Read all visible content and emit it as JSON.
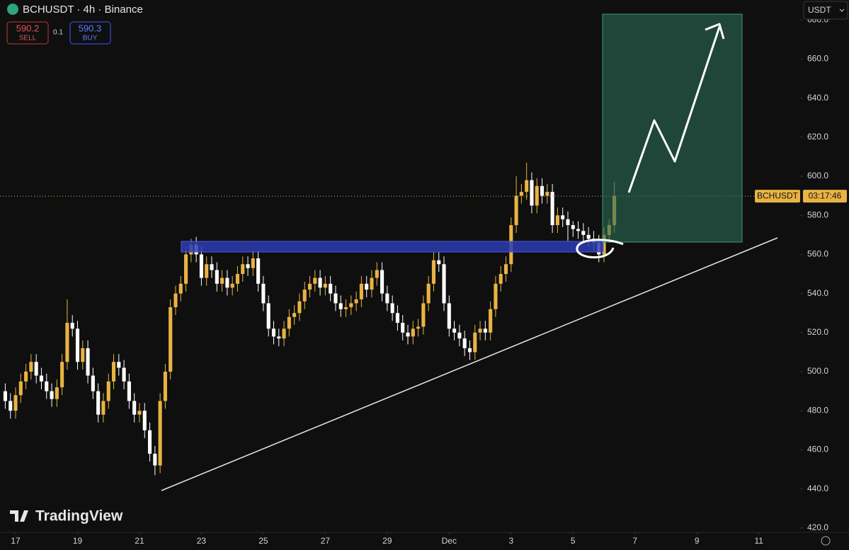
{
  "chart_data": {
    "type": "candlestick",
    "title": "BCHUSDT · 4h · Binance",
    "sell": {
      "price": 590.2,
      "label": "SELL"
    },
    "spread": 0.1,
    "buy": {
      "price": 590.3,
      "label": "BUY"
    },
    "currency": "USDT",
    "brand": "TradingView",
    "price_label": {
      "symbol": "BCHUSDT",
      "countdown": "03:17:46",
      "value": 589.8
    },
    "up_color": "#e9b343",
    "down_color": "#ffffff",
    "xlim": [
      -3.02,
      152
    ],
    "ylim": [
      417.8,
      690.2
    ],
    "xticks": [
      {
        "value": 0,
        "label": "17"
      },
      {
        "value": 12,
        "label": "19"
      },
      {
        "value": 24,
        "label": "21"
      },
      {
        "value": 36,
        "label": "23"
      },
      {
        "value": 48,
        "label": "25"
      },
      {
        "value": 60,
        "label": "27"
      },
      {
        "value": 72,
        "label": "29"
      },
      {
        "value": 84,
        "label": "Dec"
      },
      {
        "value": 96,
        "label": "3"
      },
      {
        "value": 108,
        "label": "5"
      },
      {
        "value": 120,
        "label": "7"
      },
      {
        "value": 132,
        "label": "9"
      },
      {
        "value": 144,
        "label": "11"
      }
    ],
    "yticks": [
      {
        "value": 420,
        "label": "420.0"
      },
      {
        "value": 440,
        "label": "440.0"
      },
      {
        "value": 460,
        "label": "460.0"
      },
      {
        "value": 480,
        "label": "480.0"
      },
      {
        "value": 500,
        "label": "500.0"
      },
      {
        "value": 520,
        "label": "520.0"
      },
      {
        "value": 540,
        "label": "540.0"
      },
      {
        "value": 560,
        "label": "560.0"
      },
      {
        "value": 580,
        "label": "580.0"
      },
      {
        "value": 600,
        "label": "600.0"
      },
      {
        "value": 620,
        "label": "620.0"
      },
      {
        "value": 640,
        "label": "640.0"
      },
      {
        "value": 660,
        "label": "660.0"
      },
      {
        "value": 680,
        "label": "680.0"
      }
    ],
    "x": [
      -2,
      -1,
      0,
      1,
      2,
      3,
      4,
      5,
      6,
      7,
      8,
      9,
      10,
      11,
      12,
      13,
      14,
      15,
      16,
      17,
      18,
      19,
      20,
      21,
      22,
      23,
      24,
      25,
      26,
      27,
      28,
      29,
      30,
      31,
      32,
      33,
      34,
      35,
      36,
      37,
      38,
      39,
      40,
      41,
      42,
      43,
      44,
      45,
      46,
      47,
      48,
      49,
      50,
      51,
      52,
      53,
      54,
      55,
      56,
      57,
      58,
      59,
      60,
      61,
      62,
      63,
      64,
      65,
      66,
      67,
      68,
      69,
      70,
      71,
      72,
      73,
      74,
      75,
      76,
      77,
      78,
      79,
      80,
      81,
      82,
      83,
      84,
      85,
      86,
      87,
      88,
      89,
      90,
      91,
      92,
      93,
      94,
      95,
      96,
      97,
      98,
      99,
      100,
      101,
      102,
      103,
      104,
      105,
      106,
      107,
      108,
      109,
      110,
      111,
      112,
      113,
      114,
      115,
      116
    ],
    "open": [
      490,
      485,
      480,
      488,
      495,
      500,
      505,
      498,
      495,
      490,
      486,
      492,
      505,
      525,
      522,
      505,
      512,
      498,
      490,
      478,
      485,
      495,
      505,
      502,
      495,
      485,
      478,
      480,
      470,
      458,
      452,
      485,
      500,
      533,
      540,
      545,
      560,
      565,
      560,
      548,
      555,
      552,
      545,
      548,
      543,
      545,
      550,
      555,
      553,
      558,
      545,
      535,
      522,
      518,
      517,
      522,
      528,
      530,
      536,
      542,
      545,
      548,
      543,
      545,
      540,
      535,
      532,
      533,
      535,
      537,
      545,
      542,
      548,
      552,
      540,
      535,
      530,
      525,
      520,
      518,
      522,
      523,
      535,
      545,
      557,
      555,
      535,
      522,
      520,
      517,
      512,
      510,
      520,
      522,
      520,
      532,
      545,
      550,
      555,
      575,
      590,
      592,
      598,
      585,
      595,
      590,
      592,
      575,
      580,
      578,
      575,
      573,
      572,
      570,
      568,
      566,
      560,
      570,
      575
    ],
    "high": [
      494,
      489,
      492,
      499,
      504,
      509,
      509,
      502,
      499,
      494,
      496,
      509,
      537,
      529,
      526,
      516,
      516,
      502,
      494,
      489,
      499,
      509,
      509,
      506,
      499,
      489,
      484,
      484,
      474,
      462,
      489,
      504,
      537,
      544,
      549,
      564,
      568,
      569,
      564,
      559,
      559,
      556,
      552,
      552,
      549,
      554,
      559,
      559,
      562,
      562,
      549,
      539,
      526,
      522,
      526,
      532,
      534,
      540,
      546,
      549,
      552,
      552,
      549,
      549,
      544,
      539,
      537,
      539,
      541,
      549,
      549,
      552,
      556,
      556,
      544,
      539,
      534,
      529,
      524,
      526,
      527,
      539,
      549,
      561,
      561,
      559,
      539,
      526,
      524,
      521,
      516,
      524,
      526,
      526,
      536,
      549,
      554,
      559,
      579,
      600,
      596,
      607,
      602,
      599,
      599,
      596,
      596,
      584,
      584,
      582,
      577,
      577,
      576,
      574,
      572,
      570,
      574,
      578,
      597
    ],
    "low": [
      481,
      476,
      476,
      484,
      491,
      496,
      494,
      491,
      486,
      482,
      482,
      488,
      501,
      518,
      501,
      501,
      494,
      486,
      474,
      474,
      481,
      491,
      498,
      491,
      481,
      474,
      474,
      466,
      454,
      447,
      448,
      481,
      496,
      529,
      536,
      541,
      556,
      556,
      544,
      544,
      548,
      541,
      541,
      539,
      539,
      541,
      546,
      549,
      549,
      541,
      531,
      518,
      514,
      513,
      513,
      518,
      524,
      526,
      532,
      538,
      541,
      539,
      539,
      536,
      531,
      528,
      528,
      529,
      531,
      533,
      538,
      538,
      544,
      536,
      531,
      526,
      521,
      516,
      514,
      514,
      518,
      519,
      531,
      541,
      551,
      531,
      518,
      516,
      513,
      508,
      506,
      506,
      516,
      516,
      516,
      528,
      541,
      546,
      551,
      571,
      586,
      588,
      581,
      581,
      586,
      586,
      571,
      571,
      574,
      567,
      569,
      568,
      566,
      564,
      562,
      556,
      556,
      566,
      571
    ],
    "close": [
      485,
      480,
      488,
      495,
      500,
      505,
      498,
      495,
      490,
      486,
      492,
      505,
      525,
      522,
      505,
      512,
      498,
      490,
      478,
      485,
      495,
      505,
      502,
      495,
      485,
      478,
      480,
      470,
      458,
      452,
      485,
      500,
      533,
      540,
      545,
      560,
      565,
      560,
      548,
      555,
      552,
      545,
      548,
      543,
      545,
      550,
      555,
      553,
      558,
      545,
      535,
      522,
      518,
      517,
      522,
      528,
      530,
      536,
      542,
      545,
      548,
      543,
      545,
      540,
      535,
      532,
      533,
      535,
      537,
      545,
      542,
      548,
      552,
      540,
      535,
      530,
      525,
      520,
      518,
      522,
      523,
      535,
      545,
      557,
      555,
      535,
      522,
      520,
      517,
      512,
      510,
      520,
      522,
      520,
      532,
      545,
      550,
      555,
      575,
      590,
      592,
      598,
      585,
      595,
      590,
      592,
      575,
      580,
      578,
      575,
      573,
      572,
      570,
      568,
      566,
      560,
      570,
      575,
      590
    ]
  }
}
